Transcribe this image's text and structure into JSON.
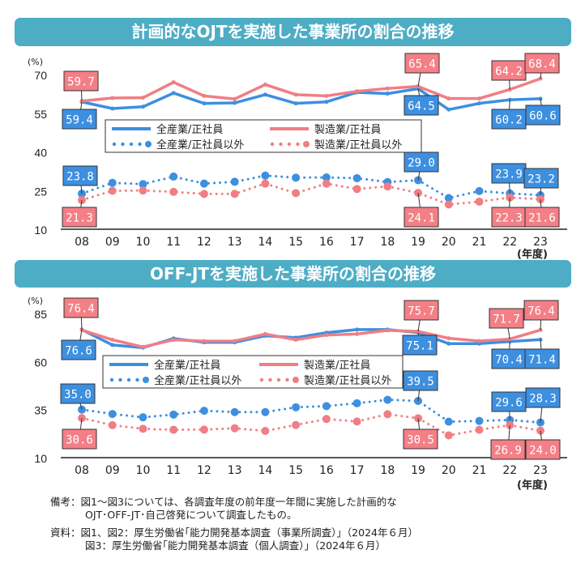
{
  "colors": {
    "blue": "#3d8fe0",
    "red": "#f07e84",
    "banner": "#4dadc5",
    "label_blue": "#3d8fe0",
    "label_red": "#f47f86"
  },
  "years": [
    "08",
    "09",
    "10",
    "11",
    "12",
    "13",
    "14",
    "15",
    "16",
    "17",
    "18",
    "19",
    "20",
    "21",
    "22",
    "23"
  ],
  "year_unit": "(年度)",
  "y_unit": "(%)",
  "legend": [
    "全産業/正社員",
    "全産業/正社員以外",
    "製造業/正社員",
    "製造業/正社員以外"
  ],
  "chart_data": [
    {
      "type": "line",
      "title": "計画的なOJTを実施した事業所の割合の推移",
      "ylabel": "(%)",
      "xlabel": "(年度)",
      "ylim": [
        10,
        70
      ],
      "yticks": [
        70,
        55,
        40,
        25,
        10
      ],
      "categories": [
        "08",
        "09",
        "10",
        "11",
        "12",
        "13",
        "14",
        "15",
        "16",
        "17",
        "18",
        "19",
        "20",
        "21",
        "22",
        "23"
      ],
      "series": [
        {
          "name": "全産業/正社員",
          "style": "solid",
          "color": "blue",
          "values": [
            59.4,
            56.8,
            57.5,
            62.8,
            58.8,
            59.0,
            62.2,
            58.8,
            59.4,
            63.1,
            62.6,
            64.5,
            56.4,
            58.8,
            60.2,
            60.6
          ]
        },
        {
          "name": "製造業/正社員",
          "style": "solid",
          "color": "red",
          "values": [
            59.7,
            60.9,
            61.0,
            67.0,
            61.7,
            60.5,
            66.1,
            62.2,
            61.7,
            63.5,
            64.6,
            65.4,
            60.7,
            60.7,
            64.2,
            68.4
          ]
        },
        {
          "name": "全産業/正社員以外",
          "style": "dotted",
          "color": "blue",
          "values": [
            23.8,
            28.0,
            27.5,
            30.4,
            27.7,
            28.4,
            30.8,
            30.0,
            30.1,
            29.8,
            28.3,
            29.0,
            22.1,
            24.8,
            23.9,
            23.2
          ]
        },
        {
          "name": "製造業/正社員以外",
          "style": "dotted",
          "color": "red",
          "values": [
            21.3,
            24.9,
            25.0,
            24.5,
            23.7,
            23.7,
            27.7,
            24.0,
            27.7,
            25.6,
            26.6,
            24.1,
            19.6,
            20.7,
            22.3,
            21.6
          ]
        }
      ],
      "data_labels": [
        {
          "series": 1,
          "index": 0,
          "text": "59.7"
        },
        {
          "series": 0,
          "index": 0,
          "text": "59.4"
        },
        {
          "series": 1,
          "index": 11,
          "text": "65.4"
        },
        {
          "series": 0,
          "index": 11,
          "text": "64.5"
        },
        {
          "series": 1,
          "index": 14,
          "text": "64.2"
        },
        {
          "series": 1,
          "index": 15,
          "text": "68.4"
        },
        {
          "series": 0,
          "index": 14,
          "text": "60.2"
        },
        {
          "series": 0,
          "index": 15,
          "text": "60.6"
        },
        {
          "series": 2,
          "index": 0,
          "text": "23.8"
        },
        {
          "series": 3,
          "index": 0,
          "text": "21.3"
        },
        {
          "series": 2,
          "index": 11,
          "text": "29.0"
        },
        {
          "series": 3,
          "index": 11,
          "text": "24.1"
        },
        {
          "series": 2,
          "index": 14,
          "text": "23.9"
        },
        {
          "series": 2,
          "index": 15,
          "text": "23.2"
        },
        {
          "series": 3,
          "index": 14,
          "text": "22.3"
        },
        {
          "series": 3,
          "index": 15,
          "text": "21.6"
        }
      ],
      "legend_placement": "center"
    },
    {
      "type": "line",
      "title": "OFF-JTを実施した事業所の割合の推移",
      "ylabel": "(%)",
      "xlabel": "(年度)",
      "ylim": [
        10,
        85
      ],
      "yticks": [
        85,
        60,
        35,
        10
      ],
      "categories": [
        "08",
        "09",
        "10",
        "11",
        "12",
        "13",
        "14",
        "15",
        "16",
        "17",
        "18",
        "19",
        "20",
        "21",
        "22",
        "23"
      ],
      "series": [
        {
          "name": "全産業/正社員",
          "style": "solid",
          "color": "blue",
          "values": [
            76.6,
            68.6,
            67.2,
            72.0,
            70.0,
            70.0,
            73.4,
            72.4,
            75.0,
            76.6,
            76.6,
            75.1,
            69.3,
            69.3,
            70.4,
            71.4
          ]
        },
        {
          "name": "製造業/正社員",
          "style": "solid",
          "color": "red",
          "values": [
            76.4,
            71.3,
            67.6,
            71.3,
            70.6,
            70.7,
            74.3,
            71.3,
            73.8,
            74.3,
            76.2,
            75.7,
            72.1,
            70.7,
            71.7,
            76.4
          ]
        },
        {
          "name": "全産業/正社員以外",
          "style": "dotted",
          "color": "blue",
          "values": [
            35.0,
            32.7,
            31.0,
            32.4,
            34.4,
            33.7,
            33.7,
            36.2,
            36.8,
            38.3,
            40.1,
            39.5,
            28.7,
            29.1,
            29.6,
            28.3
          ]
        },
        {
          "name": "製造業/正社員以外",
          "style": "dotted",
          "color": "red",
          "values": [
            30.6,
            26.9,
            25.0,
            24.5,
            24.6,
            25.3,
            23.9,
            27.0,
            30.1,
            28.8,
            32.6,
            30.5,
            21.6,
            24.5,
            26.9,
            24.0
          ]
        }
      ],
      "data_labels": [
        {
          "series": 1,
          "index": 0,
          "text": "76.4"
        },
        {
          "series": 0,
          "index": 0,
          "text": "76.6"
        },
        {
          "series": 1,
          "index": 11,
          "text": "75.7"
        },
        {
          "series": 0,
          "index": 11,
          "text": "75.1"
        },
        {
          "series": 1,
          "index": 14,
          "text": "71.7"
        },
        {
          "series": 1,
          "index": 15,
          "text": "76.4"
        },
        {
          "series": 0,
          "index": 14,
          "text": "70.4"
        },
        {
          "series": 0,
          "index": 15,
          "text": "71.4"
        },
        {
          "series": 2,
          "index": 0,
          "text": "35.0"
        },
        {
          "series": 3,
          "index": 0,
          "text": "30.6"
        },
        {
          "series": 2,
          "index": 11,
          "text": "39.5"
        },
        {
          "series": 3,
          "index": 11,
          "text": "30.5"
        },
        {
          "series": 2,
          "index": 14,
          "text": "29.6"
        },
        {
          "series": 2,
          "index": 15,
          "text": "28.3"
        },
        {
          "series": 3,
          "index": 14,
          "text": "26.9"
        },
        {
          "series": 3,
          "index": 15,
          "text": "24.0"
        }
      ],
      "legend_placement": "center"
    }
  ],
  "notes": {
    "remark_line1": "備考：図1～図3については、各調査年度の前年度一年間に実施した計画的な",
    "remark_line2": "OJT･OFF-JT･自己啓発について調査したもの。",
    "source_line1": "資料：図1、図2：厚生労働省｢能力開発基本調査（事業所調査）」（2024年６月）",
    "source_line2": "図3：厚生労働省｢能力開発基本調査（個人調査）」（2024年６月）"
  }
}
